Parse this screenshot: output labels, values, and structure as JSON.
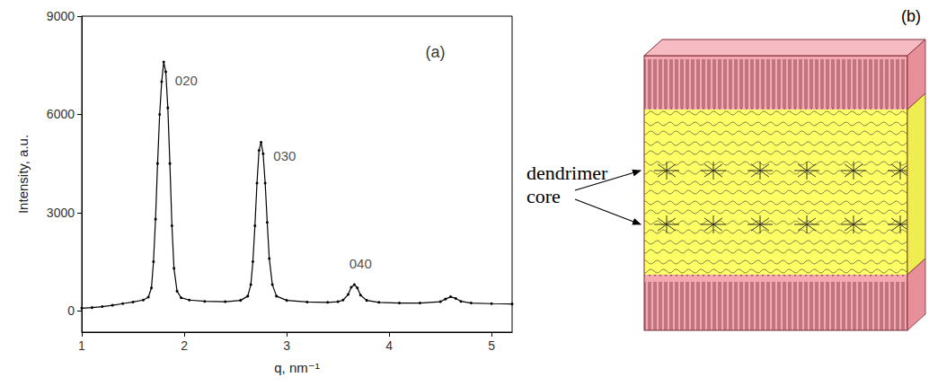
{
  "chart_data": {
    "type": "line",
    "marker": "circle",
    "color": "#000000",
    "xlabel": "q, nm⁻¹",
    "ylabel": "Intensity, a.u.",
    "x": [
      1.0,
      1.1,
      1.2,
      1.3,
      1.4,
      1.5,
      1.6,
      1.65,
      1.68,
      1.7,
      1.72,
      1.74,
      1.76,
      1.78,
      1.8,
      1.82,
      1.84,
      1.86,
      1.88,
      1.9,
      1.93,
      1.97,
      2.05,
      2.2,
      2.4,
      2.55,
      2.62,
      2.65,
      2.67,
      2.69,
      2.71,
      2.73,
      2.75,
      2.77,
      2.79,
      2.81,
      2.83,
      2.86,
      2.9,
      3.0,
      3.2,
      3.4,
      3.5,
      3.55,
      3.6,
      3.63,
      3.66,
      3.69,
      3.72,
      3.78,
      3.9,
      4.1,
      4.3,
      4.5,
      4.55,
      4.6,
      4.65,
      4.7,
      4.8,
      5.0,
      5.2
    ],
    "values": [
      80,
      100,
      130,
      170,
      220,
      270,
      330,
      420,
      700,
      1500,
      2800,
      4500,
      6000,
      7000,
      7600,
      7300,
      6200,
      4500,
      2600,
      1300,
      600,
      400,
      330,
      290,
      280,
      320,
      450,
      800,
      1500,
      2600,
      3900,
      4900,
      5150,
      4800,
      3900,
      2700,
      1600,
      800,
      450,
      320,
      270,
      260,
      280,
      330,
      500,
      720,
      800,
      700,
      480,
      320,
      260,
      240,
      240,
      280,
      360,
      430,
      380,
      290,
      240,
      220,
      210
    ],
    "xlim": [
      1,
      5.2
    ],
    "xticks": [
      1,
      2,
      3,
      4,
      5
    ],
    "ylim": [
      -650,
      9000
    ],
    "yticks": [
      0,
      3000,
      6000,
      9000
    ],
    "grid": false,
    "annotations": [
      {
        "text": "(a)",
        "x": 4.45,
        "y": 7900
      },
      {
        "text": "020",
        "x": 2.02,
        "y": 7050
      },
      {
        "text": "030",
        "x": 2.98,
        "y": 4750
      },
      {
        "text": "040",
        "x": 3.72,
        "y": 1450
      }
    ]
  },
  "diagram": {
    "label": "(b)",
    "annotation": "dendrimer core"
  }
}
